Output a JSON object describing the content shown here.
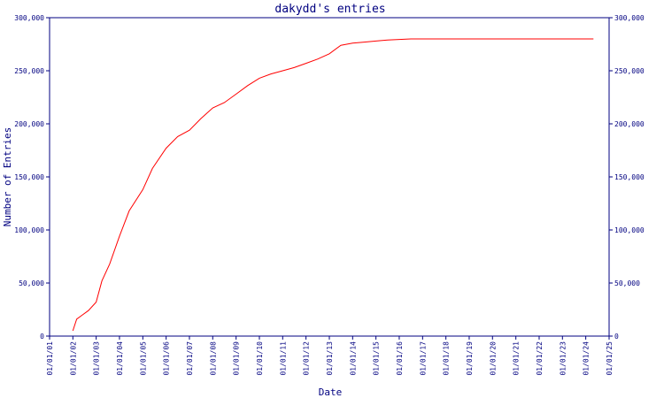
{
  "chart_data": {
    "type": "line",
    "title": "dakydd's entries",
    "xlabel": "Date",
    "ylabel": "Number of Entries",
    "x_ticks": [
      "01/01/01",
      "01/01/02",
      "01/01/03",
      "01/01/04",
      "01/01/05",
      "01/01/06",
      "01/01/07",
      "01/01/08",
      "01/01/09",
      "01/01/10",
      "01/01/11",
      "01/01/12",
      "01/01/13",
      "01/01/14",
      "01/01/15",
      "01/01/16",
      "01/01/17",
      "01/01/18",
      "01/01/19",
      "01/01/20",
      "01/01/21",
      "01/01/22",
      "01/01/23",
      "01/01/24",
      "01/01/25"
    ],
    "y_ticks": [
      0,
      50000,
      100000,
      150000,
      200000,
      250000,
      300000
    ],
    "y_tick_labels": [
      "0",
      "50,000",
      "100,000",
      "150,000",
      "200,000",
      "250,000",
      "300,000"
    ],
    "ylim": [
      0,
      300000
    ],
    "grid": false,
    "series": [
      {
        "color": "#ff0000",
        "x": [
          "2002-01-01",
          "2002-03-01",
          "2002-06-01",
          "2002-09-01",
          "2003-01-01",
          "2003-04-01",
          "2003-08-01",
          "2004-01-01",
          "2004-06-01",
          "2005-01-01",
          "2005-06-01",
          "2006-01-01",
          "2006-07-01",
          "2007-01-01",
          "2007-07-01",
          "2008-01-01",
          "2008-07-01",
          "2009-01-01",
          "2009-07-01",
          "2010-01-01",
          "2010-07-01",
          "2011-01-01",
          "2011-07-01",
          "2012-01-01",
          "2012-07-01",
          "2013-01-01",
          "2013-07-01",
          "2014-01-01",
          "2014-07-01",
          "2015-01-01",
          "2015-07-01",
          "2016-01-01",
          "2016-07-01",
          "2017-01-01",
          "2018-01-01",
          "2019-01-01",
          "2020-01-01",
          "2021-01-01",
          "2022-01-01",
          "2023-01-01",
          "2024-01-01",
          "2024-05-01"
        ],
        "values": [
          5000,
          16000,
          20000,
          24000,
          32000,
          52000,
          68000,
          94000,
          118000,
          138000,
          158000,
          177000,
          188000,
          194000,
          205000,
          215000,
          220000,
          228000,
          236000,
          243000,
          247000,
          250000,
          253000,
          257000,
          261000,
          266000,
          274000,
          276000,
          277000,
          278000,
          279000,
          279500,
          280000,
          280000,
          280000,
          280000,
          280000,
          280000,
          280000,
          280000,
          280000,
          280000
        ]
      }
    ]
  }
}
